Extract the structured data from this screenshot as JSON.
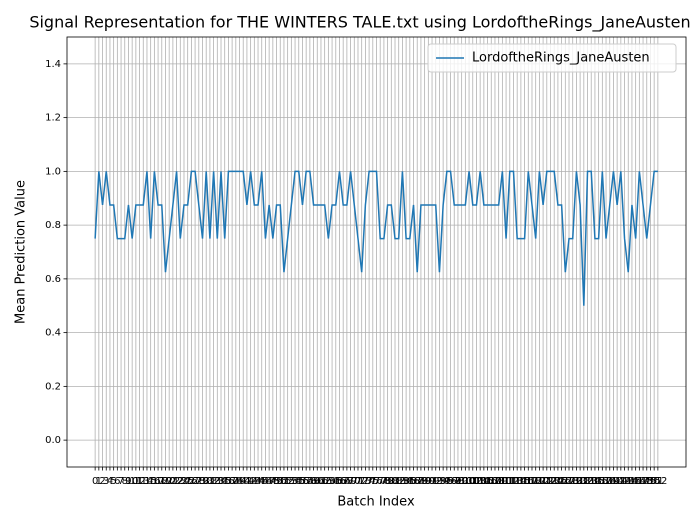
{
  "chart_data": {
    "type": "line",
    "title": "Signal Representation for THE WINTERS TALE.txt using LordoftheRings_JaneAusten",
    "x_label": "Batch Index",
    "y_label": "Mean Prediction Value",
    "categories": [
      "0",
      "1",
      "2",
      "3",
      "4",
      "5",
      "6",
      "7",
      "8",
      "9",
      "10",
      "11",
      "12",
      "13",
      "14",
      "15",
      "16",
      "17",
      "18",
      "19",
      "20",
      "21",
      "22",
      "23",
      "24",
      "25",
      "26",
      "27",
      "28",
      "29",
      "30",
      "31",
      "32",
      "33",
      "34",
      "35",
      "36",
      "37",
      "38",
      "39",
      "40",
      "41",
      "42",
      "43",
      "44",
      "45",
      "46",
      "47",
      "48",
      "49",
      "50",
      "51",
      "52",
      "53",
      "54",
      "55",
      "56",
      "57",
      "58",
      "59",
      "60",
      "61",
      "62",
      "63",
      "64",
      "65",
      "66",
      "67",
      "68",
      "69",
      "70",
      "71",
      "72",
      "73",
      "74",
      "75",
      "76",
      "77",
      "78",
      "79",
      "80",
      "81",
      "82",
      "83",
      "84",
      "85",
      "86",
      "87",
      "88",
      "89",
      "90",
      "91",
      "92",
      "93",
      "94",
      "95",
      "96",
      "97",
      "98",
      "99",
      "100",
      "101",
      "102",
      "103",
      "104",
      "105",
      "106",
      "107",
      "108",
      "109",
      "110",
      "111",
      "112",
      "113",
      "114",
      "115",
      "116",
      "117",
      "118",
      "119",
      "120",
      "121",
      "122",
      "123",
      "124",
      "125",
      "126",
      "127",
      "128",
      "129",
      "130",
      "131",
      "132",
      "133",
      "134",
      "135",
      "136",
      "137",
      "138",
      "139",
      "140",
      "141",
      "142",
      "143",
      "144",
      "145",
      "146",
      "147",
      "148",
      "149",
      "150",
      "151",
      "152"
    ],
    "series": [
      {
        "name": "LordoftheRings_JaneAusten",
        "color": "#1f77b4",
        "values": [
          0.75,
          1,
          0.875,
          1,
          0.875,
          0.875,
          0.75,
          0.75,
          0.75,
          0.875,
          0.75,
          0.875,
          0.875,
          0.875,
          1,
          0.75,
          1,
          0.875,
          0.875,
          0.625,
          0.75,
          0.875,
          1,
          0.75,
          0.875,
          0.875,
          1,
          1,
          0.875,
          0.75,
          1,
          0.75,
          1,
          0.75,
          1,
          0.75,
          1,
          1,
          1,
          1,
          1,
          0.875,
          1,
          0.875,
          0.875,
          1,
          0.75,
          0.875,
          0.75,
          0.875,
          0.875,
          0.625,
          0.75,
          0.875,
          1,
          1,
          0.875,
          1,
          1,
          0.875,
          0.875,
          0.875,
          0.875,
          0.75,
          0.875,
          0.875,
          1,
          0.875,
          0.875,
          1,
          0.875,
          0.75,
          0.625,
          0.875,
          1,
          1,
          1,
          0.75,
          0.75,
          0.875,
          0.875,
          0.75,
          0.75,
          1,
          0.75,
          0.75,
          0.875,
          0.625,
          0.875,
          0.875,
          0.875,
          0.875,
          0.875,
          0.625,
          0.875,
          1,
          1,
          0.875,
          0.875,
          0.875,
          0.875,
          1,
          0.875,
          0.875,
          1,
          0.875,
          0.875,
          0.875,
          0.875,
          0.875,
          1,
          0.75,
          1,
          1,
          0.75,
          0.75,
          0.75,
          1,
          0.875,
          0.75,
          1,
          0.875,
          1,
          1,
          1,
          0.875,
          0.875,
          0.625,
          0.75,
          0.75,
          1,
          0.875,
          0.5,
          1,
          1,
          0.75,
          0.75,
          1,
          0.75,
          0.875,
          1,
          0.875,
          1,
          0.75,
          0.625,
          0.875,
          0.75,
          1,
          0.875,
          0.75,
          0.875,
          1,
          1
        ]
      }
    ],
    "ylim": [
      -0.1,
      1.5
    ],
    "yticks": [
      {
        "value": 0,
        "label": "0.0"
      },
      0.2,
      0.4,
      0.6,
      0.8,
      {
        "value": 1,
        "label": "1.0"
      },
      1.2,
      1.4
    ],
    "grid": true,
    "legend": "upper right"
  }
}
